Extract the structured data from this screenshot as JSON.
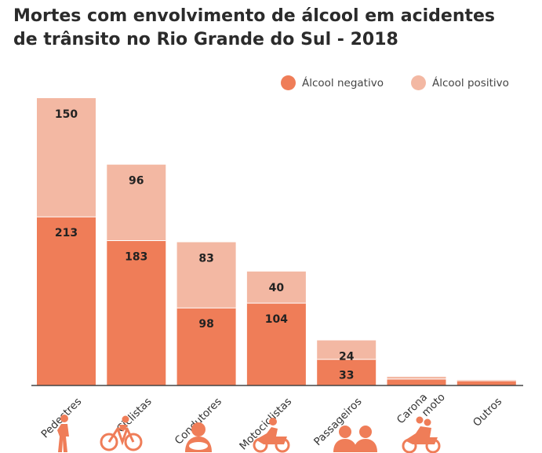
{
  "chart_data": {
    "type": "bar",
    "stacked": true,
    "title_line1": "Mortes com envolvimento de álcool em acidentes",
    "title_line2": "de trânsito no Rio Grande do Sul - 2018",
    "categories": [
      "Pedestres",
      "Ciclistas",
      "Condutores",
      "Motociclistas",
      "Passageiros",
      "Carona moto",
      "Outros"
    ],
    "series": [
      {
        "name": "Álcool negativo",
        "color": "#ef7d58",
        "values": [
          213,
          183,
          98,
          104,
          33,
          8,
          6
        ],
        "labels": [
          "213",
          "183",
          "98",
          "104",
          "33",
          "",
          ""
        ]
      },
      {
        "name": "Álcool positivo",
        "color": "#f3b8a3",
        "values": [
          150,
          96,
          83,
          40,
          24,
          3,
          1
        ],
        "labels": [
          "150",
          "96",
          "83",
          "40",
          "24",
          "",
          ""
        ]
      }
    ],
    "ylim": [
      0,
      370
    ],
    "grid": false,
    "legend_position": "top-right"
  },
  "icons": [
    "pedestrian-icon",
    "cyclist-icon",
    "driver-icon",
    "motorcyclist-icon",
    "passengers-icon",
    "moto-passenger-icon",
    "none"
  ],
  "colors": {
    "icon": "#ef7d58",
    "axis": "#444444"
  }
}
